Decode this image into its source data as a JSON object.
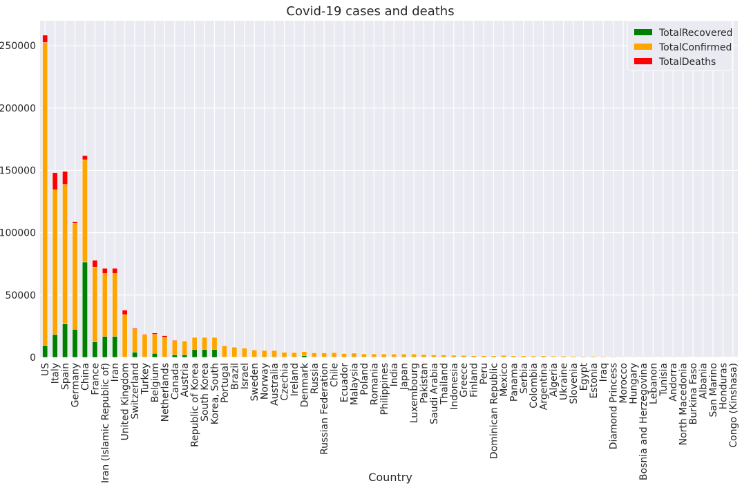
{
  "chart_data": {
    "type": "bar",
    "stacked": true,
    "title": "Covid-19 cases and deaths",
    "xlabel": "Country",
    "ylabel": "",
    "ylim": [
      0,
      270000
    ],
    "yticks": [
      0,
      50000,
      100000,
      150000,
      200000,
      250000
    ],
    "grid": true,
    "legend_position": "top-right",
    "categories": [
      "US",
      "Italy",
      "Spain",
      "Germany",
      "China",
      "France",
      "Iran (Islamic Republic of)",
      "Iran",
      "United Kingdom",
      "Switzerland",
      "Turkey",
      "Belgium",
      "Netherlands",
      "Canada",
      "Austria",
      "Republic of Korea",
      "South Korea",
      "Korea, South",
      "Portugal",
      "Brazil",
      "Israel",
      "Sweden",
      "Norway",
      "Australia",
      "Czechia",
      "Ireland",
      "Denmark",
      "Russia",
      "Russian Federation",
      "Chile",
      "Ecuador",
      "Malaysia",
      "Poland",
      "Romania",
      "Philippines",
      "India",
      "Japan",
      "Luxembourg",
      "Pakistan",
      "Saudi Arabia",
      "Thailand",
      "Indonesia",
      "Greece",
      "Finland",
      "Peru",
      "Dominican Republic",
      "Mexico",
      "Panama",
      "Serbia",
      "Colombia",
      "Argentina",
      "Algeria",
      "Ukraine",
      "Slovenia",
      "Egypt",
      "Estonia",
      "Iraq",
      "Diamond Princess",
      "Morocco",
      "Hungary",
      "Bosnia and Herzegovina",
      "Lebanon",
      "Tunisia",
      "Andorra",
      "North Macedonia",
      "Burkina Faso",
      "Albania",
      "San Marino",
      "Honduras",
      "Congo (Kinshasa)"
    ],
    "series": [
      {
        "name": "TotalRecovered",
        "color": "#008000",
        "values": [
          9500,
          18300,
          26800,
          22500,
          76500,
          12500,
          16800,
          16800,
          200,
          4200,
          200,
          3200,
          200,
          2000,
          2000,
          6400,
          6400,
          6400,
          200,
          200,
          200,
          200,
          100,
          500,
          100,
          100,
          1400,
          300,
          300,
          100,
          100,
          400,
          100,
          200,
          100,
          200,
          500,
          100,
          100,
          100,
          100,
          100,
          100,
          100,
          100,
          100,
          100,
          100,
          100,
          100,
          100,
          200,
          100,
          100,
          200,
          100,
          200,
          300,
          100,
          100,
          100,
          100,
          100,
          100,
          100,
          100,
          100,
          100,
          100,
          100
        ]
      },
      {
        "name": "TotalConfirmed",
        "color": "#FFA500",
        "values": [
          243000,
          116000,
          112000,
          85000,
          82000,
          60000,
          50500,
          50500,
          34000,
          18700,
          18100,
          15300,
          15700,
          11500,
          11000,
          9700,
          9700,
          9700,
          9000,
          8000,
          7300,
          5600,
          5400,
          5000,
          3900,
          3800,
          3200,
          3300,
          3300,
          3700,
          3000,
          3000,
          2700,
          2500,
          2600,
          2400,
          2100,
          2500,
          2200,
          1900,
          1800,
          1600,
          1400,
          1300,
          1300,
          1100,
          1500,
          1100,
          1100,
          1000,
          1100,
          800,
          900,
          800,
          600,
          800,
          600,
          400,
          400,
          400,
          400,
          400,
          400,
          400,
          400,
          200,
          300,
          300,
          200,
          200
        ]
      },
      {
        "name": "TotalDeaths",
        "color": "#FF0000",
        "values": [
          5900,
          13800,
          10300,
          1400,
          3300,
          5400,
          4100,
          4100,
          3600,
          600,
          400,
          1100,
          1500,
          400,
          300,
          200,
          200,
          200,
          300,
          100,
          100,
          300,
          100,
          100,
          100,
          100,
          200,
          100,
          100,
          100,
          200,
          100,
          100,
          100,
          200,
          100,
          100,
          100,
          100,
          100,
          100,
          200,
          100,
          100,
          100,
          100,
          100,
          100,
          100,
          100,
          100,
          100,
          100,
          100,
          100,
          100,
          100,
          100,
          100,
          100,
          100,
          100,
          100,
          100,
          100,
          100,
          100,
          100,
          100,
          100
        ]
      }
    ]
  }
}
